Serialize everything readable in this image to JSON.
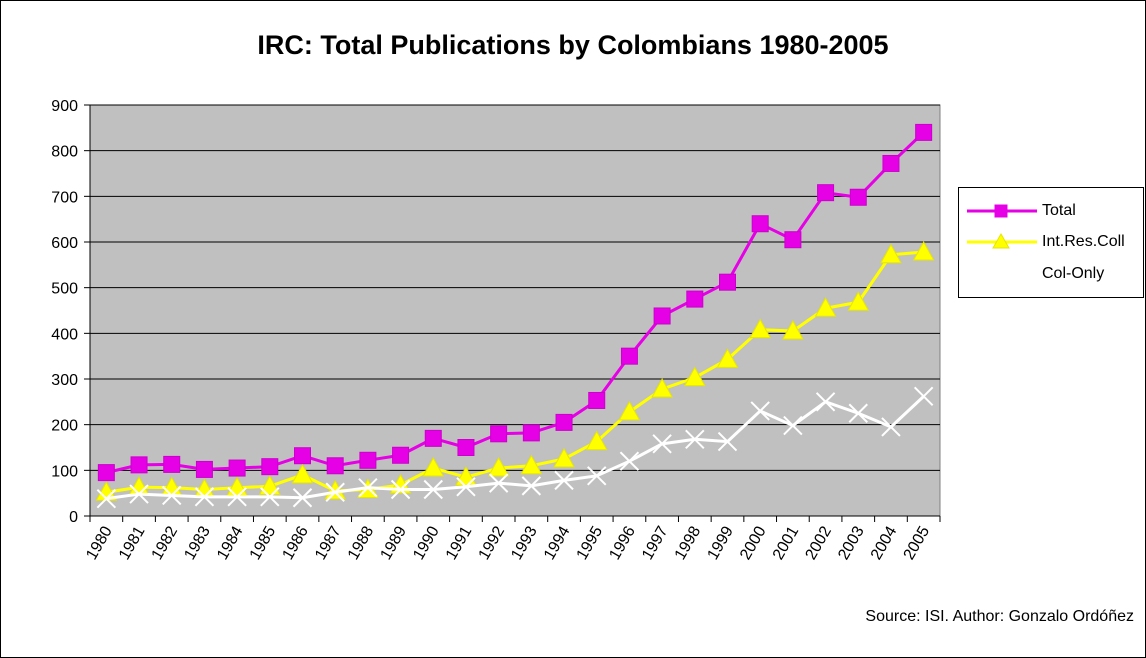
{
  "chart_data": {
    "type": "line",
    "title": "IRC: Total Publications by Colombians 1980-2005",
    "xlabel": "",
    "ylabel": "",
    "ylim": [
      0,
      900
    ],
    "yticks": [
      0,
      100,
      200,
      300,
      400,
      500,
      600,
      700,
      800,
      900
    ],
    "grid": true,
    "legend_position": "right",
    "background_color": "#c0c0c0",
    "categories": [
      "1980",
      "1981",
      "1982",
      "1983",
      "1984",
      "1985",
      "1986",
      "1987",
      "1988",
      "1989",
      "1990",
      "1991",
      "1992",
      "1993",
      "1994",
      "1995",
      "1996",
      "1997",
      "1998",
      "1999",
      "2000",
      "2001",
      "2002",
      "2003",
      "2004",
      "2005"
    ],
    "series": [
      {
        "name": "Total",
        "color": "#e600e6",
        "marker": "square",
        "values": [
          95,
          112,
          113,
          102,
          105,
          108,
          132,
          110,
          122,
          133,
          170,
          150,
          180,
          182,
          205,
          253,
          350,
          438,
          475,
          512,
          640,
          605,
          708,
          698,
          772,
          840
        ]
      },
      {
        "name": "Int.Res.Coll",
        "color": "#ffff00",
        "marker": "triangle",
        "values": [
          52,
          63,
          62,
          58,
          62,
          65,
          90,
          55,
          58,
          68,
          105,
          85,
          105,
          110,
          125,
          163,
          228,
          278,
          303,
          343,
          408,
          405,
          455,
          468,
          572,
          578
        ]
      },
      {
        "name": "Col-Only",
        "color": "#ffffff",
        "marker": "x",
        "values": [
          38,
          48,
          45,
          42,
          42,
          42,
          40,
          52,
          62,
          58,
          58,
          64,
          72,
          66,
          78,
          88,
          120,
          158,
          168,
          163,
          230,
          198,
          250,
          225,
          195,
          262
        ]
      }
    ],
    "source_note": "Source: ISI. Author: Gonzalo Ordóñez"
  }
}
